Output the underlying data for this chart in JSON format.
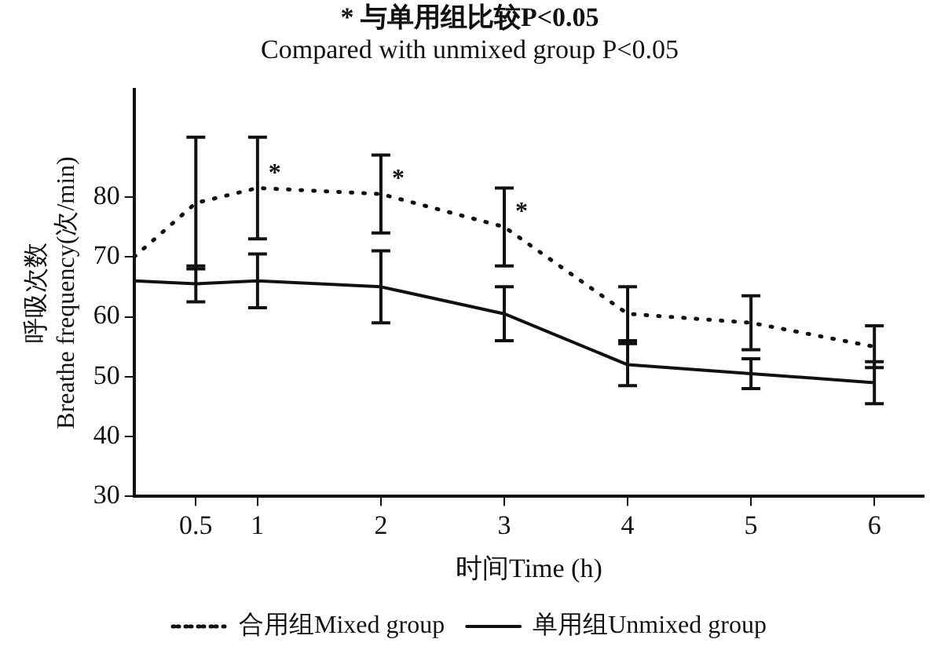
{
  "chart_data": {
    "type": "line",
    "title": "* 与单用组比较P<0.05",
    "subtitle": "Compared with unmixed group P<0.05",
    "xlabel": "时间Time (h)",
    "ylabel": "呼吸次数\nBreathe frequency(次/min)",
    "x": [
      0,
      0.5,
      1,
      2,
      3,
      4,
      5,
      6
    ],
    "series": [
      {
        "name": "合用组Mixed group",
        "color": "#111111",
        "line_style": "dotted",
        "values": [
          70,
          79,
          81.5,
          80.5,
          75,
          60.5,
          59,
          55
        ],
        "errors": [
          null,
          11,
          8.5,
          6.5,
          6.5,
          4.5,
          4.5,
          3.5
        ]
      },
      {
        "name": "单用组Unmixed group",
        "color": "#111111",
        "line_style": "solid",
        "values": [
          66,
          65.5,
          66,
          65,
          60.5,
          52,
          50.5,
          49
        ],
        "errors": [
          null,
          3,
          4.5,
          6,
          4.5,
          3.5,
          2.5,
          3.5
        ]
      }
    ],
    "annotations": [
      {
        "text": "*",
        "x": 1,
        "y": 81.5
      },
      {
        "text": "*",
        "x": 2,
        "y": 80.5
      },
      {
        "text": "*",
        "x": 3,
        "y": 75
      }
    ],
    "xlim": [
      0,
      6.4
    ],
    "xticks": [
      0.5,
      1,
      2,
      3,
      4,
      5,
      6
    ],
    "ylim": [
      30,
      98
    ],
    "yticks": [
      30,
      40,
      50,
      60,
      70,
      80
    ],
    "grid": false,
    "legend": "bottom",
    "marker": "none"
  }
}
